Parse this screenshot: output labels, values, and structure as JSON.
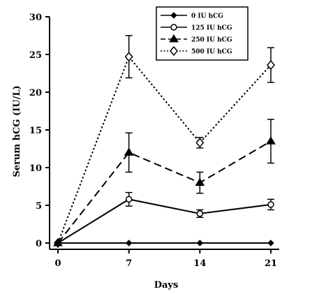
{
  "chart_data": {
    "type": "line",
    "xlabel": "Days",
    "ylabel": "Serum hCG (IU/L)",
    "x": [
      0,
      7,
      14,
      21
    ],
    "xlim": [
      0,
      22
    ],
    "ylim": [
      0,
      30
    ],
    "xticks": [
      0,
      7,
      14,
      21
    ],
    "yticks": [
      0,
      5,
      10,
      15,
      20,
      25,
      30
    ],
    "grid": false,
    "legend_position": "top-right",
    "series": [
      {
        "name": "0 IU hCG",
        "values": [
          0,
          0,
          0,
          0
        ],
        "errors": [
          0,
          0,
          0,
          0
        ],
        "marker": "filled-diamond",
        "line": "solid"
      },
      {
        "name": "125 IU hCG",
        "values": [
          0,
          5.8,
          3.9,
          5.1
        ],
        "errors": [
          0,
          0.9,
          0.5,
          0.7
        ],
        "marker": "open-circle",
        "line": "solid"
      },
      {
        "name": "250 IU hCG",
        "values": [
          0,
          12.0,
          8.0,
          13.5
        ],
        "errors": [
          0,
          2.6,
          1.4,
          2.9
        ],
        "marker": "filled-triangle",
        "line": "dashed"
      },
      {
        "name": "500 IU hCG",
        "values": [
          0,
          24.7,
          13.3,
          23.6
        ],
        "errors": [
          0,
          2.8,
          0.7,
          2.3
        ],
        "marker": "open-diamond",
        "line": "dotted"
      }
    ]
  }
}
